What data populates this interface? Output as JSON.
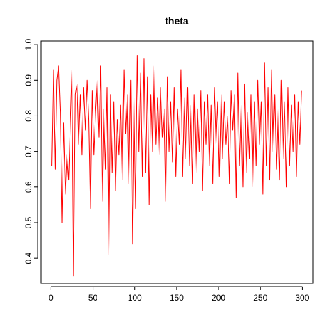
{
  "chart_data": {
    "type": "line",
    "title": "theta",
    "xlabel": "",
    "ylabel": "",
    "xlim": [
      -11.96,
      312.96
    ],
    "ylim": [
      0.33,
      1.01
    ],
    "xticks": [
      0,
      50,
      100,
      150,
      200,
      250,
      300
    ],
    "xtick_labels": [
      "0",
      "50",
      "100",
      "150",
      "200",
      "250",
      "300"
    ],
    "yticks": [
      0.4,
      0.5,
      0.6,
      0.7,
      0.8,
      0.9,
      1.0
    ],
    "ytick_labels": [
      "0.4",
      "0.5",
      "0.6",
      "0.7",
      "0.8",
      "0.9",
      "1.0"
    ],
    "grid": false,
    "legend": "none",
    "series": [
      {
        "color": "#ff0000",
        "x": [
          1,
          3,
          5,
          7,
          9,
          11,
          13,
          15,
          17,
          19,
          21,
          23,
          25,
          27,
          29,
          31,
          33,
          35,
          37,
          39,
          41,
          43,
          45,
          47,
          49,
          51,
          53,
          55,
          57,
          59,
          61,
          63,
          65,
          67,
          69,
          71,
          73,
          75,
          77,
          79,
          81,
          83,
          85,
          87,
          89,
          91,
          93,
          95,
          97,
          99,
          101,
          103,
          105,
          107,
          109,
          111,
          113,
          115,
          117,
          119,
          121,
          123,
          125,
          127,
          129,
          131,
          133,
          135,
          137,
          139,
          141,
          143,
          145,
          147,
          149,
          151,
          153,
          155,
          157,
          159,
          161,
          163,
          165,
          167,
          169,
          171,
          173,
          175,
          177,
          179,
          181,
          183,
          185,
          187,
          189,
          191,
          193,
          195,
          197,
          199,
          201,
          203,
          205,
          207,
          209,
          211,
          213,
          215,
          217,
          219,
          221,
          223,
          225,
          227,
          229,
          231,
          233,
          235,
          237,
          239,
          241,
          243,
          245,
          247,
          249,
          251,
          253,
          255,
          257,
          259,
          261,
          263,
          265,
          267,
          269,
          271,
          273,
          275,
          277,
          279,
          281,
          283,
          285,
          287,
          289,
          291,
          293,
          295,
          297,
          299
        ],
        "y": [
          0.66,
          0.93,
          0.65,
          0.9,
          0.94,
          0.81,
          0.5,
          0.78,
          0.58,
          0.69,
          0.62,
          0.78,
          0.93,
          0.35,
          0.86,
          0.89,
          0.72,
          0.86,
          0.69,
          0.88,
          0.76,
          0.9,
          0.79,
          0.54,
          0.87,
          0.69,
          0.81,
          0.9,
          0.74,
          0.94,
          0.56,
          0.82,
          0.65,
          0.88,
          0.41,
          0.86,
          0.64,
          0.84,
          0.59,
          0.79,
          0.69,
          0.83,
          0.62,
          0.93,
          0.75,
          0.86,
          0.61,
          0.9,
          0.44,
          0.85,
          0.54,
          0.97,
          0.7,
          0.92,
          0.63,
          0.96,
          0.64,
          0.91,
          0.55,
          0.86,
          0.7,
          0.94,
          0.72,
          0.85,
          0.69,
          0.88,
          0.74,
          0.82,
          0.56,
          0.91,
          0.7,
          0.84,
          0.67,
          0.88,
          0.63,
          0.82,
          0.72,
          0.93,
          0.63,
          0.85,
          0.68,
          0.88,
          0.66,
          0.83,
          0.61,
          0.86,
          0.64,
          0.82,
          0.7,
          0.87,
          0.59,
          0.84,
          0.72,
          0.86,
          0.66,
          0.83,
          0.61,
          0.88,
          0.72,
          0.84,
          0.63,
          0.86,
          0.68,
          0.84,
          0.72,
          0.8,
          0.61,
          0.87,
          0.76,
          0.86,
          0.57,
          0.92,
          0.66,
          0.83,
          0.6,
          0.89,
          0.64,
          0.81,
          0.68,
          0.86,
          0.6,
          0.84,
          0.66,
          0.9,
          0.72,
          0.84,
          0.58,
          0.95,
          0.66,
          0.88,
          0.62,
          0.93,
          0.7,
          0.86,
          0.65,
          0.82,
          0.62,
          0.9,
          0.68,
          0.84,
          0.6,
          0.88,
          0.66,
          0.83,
          0.7,
          0.86,
          0.63,
          0.84,
          0.72,
          0.87
        ]
      }
    ]
  }
}
